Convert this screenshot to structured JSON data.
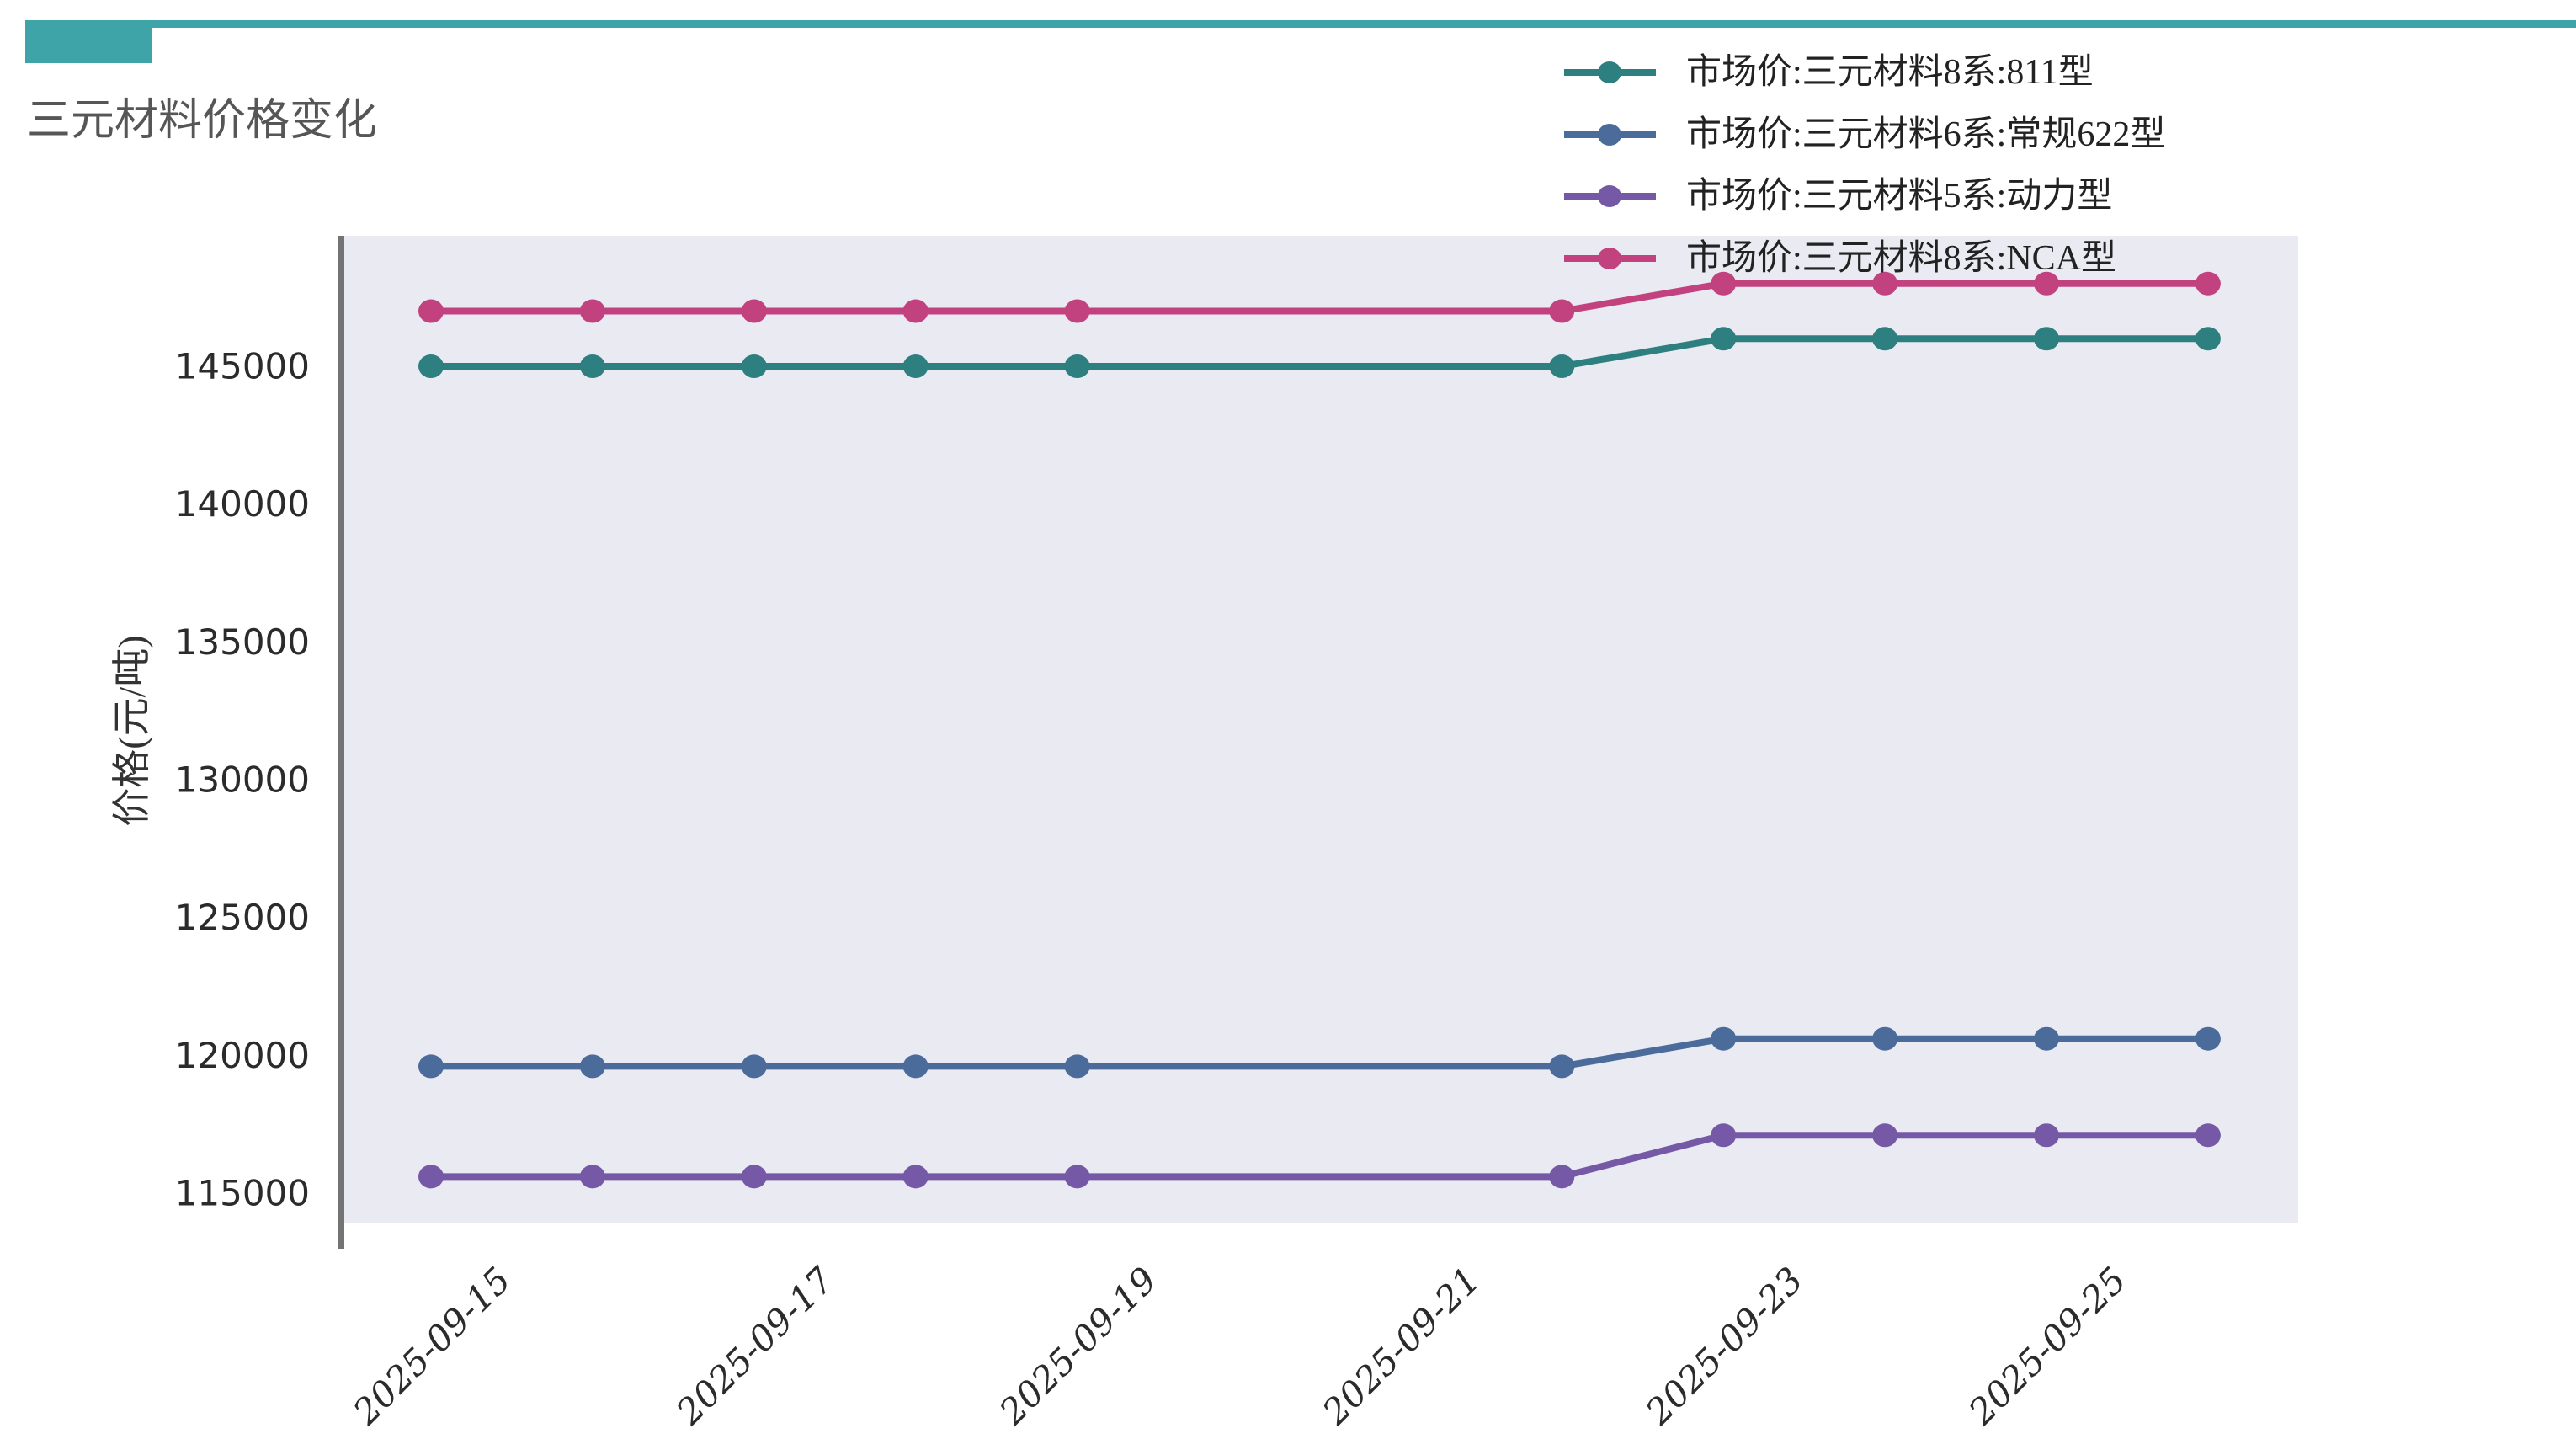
{
  "page": {
    "background": "#ffffff"
  },
  "header": {
    "title": "三元材料价格变化",
    "title_color": "#565656",
    "bar_color": "#3ea4a7"
  },
  "chart": {
    "plot_bg_color": "#eaeaf2",
    "spine_color": "#747474",
    "tick_text_color": "#2b2b2b",
    "ylabel": "价格(元/吨)",
    "y_ticks": [
      115000,
      120000,
      125000,
      130000,
      135000,
      140000,
      145000
    ],
    "x_tick_labels": [
      "2025-09-15",
      "2025-09-17",
      "2025-09-19",
      "2025-09-21",
      "2025-09-23",
      "2025-09-25"
    ]
  },
  "chart_data": {
    "type": "line",
    "title": "三元材料价格变化",
    "xlabel": "",
    "ylabel": "价格(元/吨)",
    "x": [
      "2025-09-15",
      "2025-09-16",
      "2025-09-17",
      "2025-09-18",
      "2025-09-19",
      "2025-09-22",
      "2025-09-23",
      "2025-09-24",
      "2025-09-25",
      "2025-09-26"
    ],
    "series": [
      {
        "name": "市场价:三元材料8系:811型",
        "color": "#2d7f80",
        "values": [
          145000,
          145000,
          145000,
          145000,
          145000,
          145000,
          146000,
          146000,
          146000,
          146000
        ]
      },
      {
        "name": "市场价:三元材料6系:常规622型",
        "color": "#4b6b9b",
        "values": [
          119600,
          119600,
          119600,
          119600,
          119600,
          119600,
          120600,
          120600,
          120600,
          120600
        ]
      },
      {
        "name": "市场价:三元材料5系:动力型",
        "color": "#7559a7",
        "values": [
          115600,
          115600,
          115600,
          115600,
          115600,
          115600,
          117100,
          117100,
          117100,
          117100
        ]
      },
      {
        "name": "市场价:三元材料8系:NCA型",
        "color": "#c2427f",
        "values": [
          147000,
          147000,
          147000,
          147000,
          147000,
          147000,
          148000,
          148000,
          148000,
          148000
        ]
      }
    ],
    "ylim": [
      113930,
      149690
    ],
    "xlim_dates": [
      "2025-09-14",
      "2025-09-26"
    ],
    "grid": false,
    "legend_position": "top-right",
    "marker": "circle",
    "notes": "weekend dates 2025-09-20 and 2025-09-21 have no data points; time x-axis leaves a gap"
  }
}
